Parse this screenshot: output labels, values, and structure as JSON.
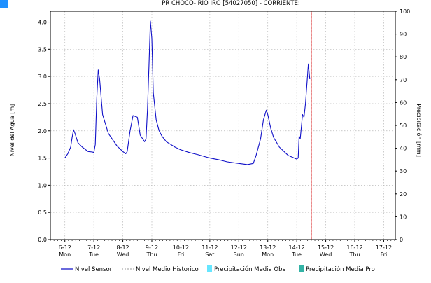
{
  "colors": {
    "sensor_line": "#1010c8",
    "historic_line": "#9a9a9a",
    "current_marker": "#cc0000",
    "precip_obs": "#66e6ff",
    "precip_pro": "#33b3a6",
    "grid": "#b8b8b8",
    "corner_tab": "#1e90ff"
  },
  "chart_data": {
    "type": "line",
    "title": "PR CHOCO- RIO IRO [54027050] - CORRIENTE:",
    "ylabel": "Nivel del Agua [m]",
    "y2label": "Precipitación [mm]",
    "ylim": [
      0,
      4.2
    ],
    "y2lim": [
      0,
      100
    ],
    "xlim": [
      5.5,
      17.4
    ],
    "yticks": [
      "0.0",
      "0.5",
      "1.0",
      "1.5",
      "2.0",
      "2.5",
      "3.0",
      "3.5",
      "4.0"
    ],
    "y2ticks": [
      "0",
      "10",
      "20",
      "30",
      "40",
      "50",
      "60",
      "70",
      "80",
      "90",
      "100"
    ],
    "xticks": [
      {
        "x": 6,
        "date": "6-12",
        "day": "Mon"
      },
      {
        "x": 7,
        "date": "7-12",
        "day": "Tue"
      },
      {
        "x": 8,
        "date": "8-12",
        "day": "Wed"
      },
      {
        "x": 9,
        "date": "9-12",
        "day": "Thu"
      },
      {
        "x": 10,
        "date": "10-12",
        "day": "Fri"
      },
      {
        "x": 11,
        "date": "11-12",
        "day": "Sat"
      },
      {
        "x": 12,
        "date": "12-12",
        "day": "Sun"
      },
      {
        "x": 13,
        "date": "13-12",
        "day": "Mon"
      },
      {
        "x": 14,
        "date": "14-12",
        "day": "Tue"
      },
      {
        "x": 15,
        "date": "15-12",
        "day": "Wed"
      },
      {
        "x": 16,
        "date": "16-12",
        "day": "Thu"
      },
      {
        "x": 17,
        "date": "17-12",
        "day": "Fri"
      }
    ],
    "current_time_x": 14.5,
    "grid": true,
    "legend_position": "bottom",
    "series": [
      {
        "name": "Nivel Sensor",
        "x": [
          6.0,
          6.1,
          6.2,
          6.25,
          6.3,
          6.35,
          6.45,
          6.6,
          6.8,
          6.95,
          7.0,
          7.05,
          7.1,
          7.15,
          7.2,
          7.3,
          7.5,
          7.8,
          8.0,
          8.1,
          8.15,
          8.25,
          8.35,
          8.5,
          8.6,
          8.75,
          8.8,
          8.85,
          8.9,
          8.95,
          9.0,
          9.05,
          9.15,
          9.25,
          9.35,
          9.5,
          9.8,
          10.0,
          10.3,
          10.6,
          11.0,
          11.3,
          11.6,
          12.0,
          12.3,
          12.5,
          12.6,
          12.75,
          12.85,
          12.95,
          13.0,
          13.1,
          13.2,
          13.4,
          13.7,
          14.0,
          14.05,
          14.08,
          14.12,
          14.2,
          14.25,
          14.3,
          14.35,
          14.4,
          14.45
        ],
        "y": [
          1.5,
          1.58,
          1.7,
          1.88,
          2.02,
          1.95,
          1.78,
          1.7,
          1.62,
          1.61,
          1.6,
          1.75,
          2.6,
          3.12,
          2.95,
          2.3,
          1.95,
          1.72,
          1.62,
          1.58,
          1.62,
          2.0,
          2.28,
          2.25,
          1.92,
          1.8,
          1.85,
          2.4,
          3.2,
          4.02,
          3.7,
          2.7,
          2.2,
          2.0,
          1.9,
          1.8,
          1.7,
          1.65,
          1.6,
          1.56,
          1.5,
          1.47,
          1.43,
          1.4,
          1.38,
          1.4,
          1.55,
          1.85,
          2.2,
          2.38,
          2.3,
          2.05,
          1.88,
          1.7,
          1.55,
          1.48,
          1.5,
          1.9,
          1.85,
          2.3,
          2.25,
          2.5,
          2.85,
          3.23,
          2.95
        ]
      },
      {
        "name": "Nivel Medio Historico",
        "x": [],
        "y": []
      },
      {
        "name": "Precipitación Media Obs",
        "values": []
      },
      {
        "name": "Precipitación Media Pro",
        "values": []
      }
    ]
  }
}
